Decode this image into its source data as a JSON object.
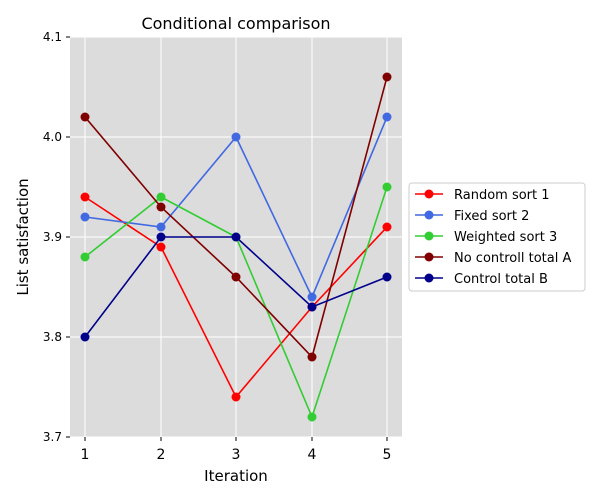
{
  "chart_data": {
    "type": "line",
    "title": "Conditional comparison",
    "xlabel": "Iteration",
    "ylabel": "List satisfaction",
    "x": [
      1,
      2,
      3,
      4,
      5
    ],
    "ylim": [
      3.7,
      4.1
    ],
    "yticks": [
      "3.7",
      "3.8",
      "3.9",
      "4.0",
      "4.1"
    ],
    "xticks": [
      "1",
      "2",
      "3",
      "4",
      "5"
    ],
    "grid": true,
    "legend_position": "right",
    "series": [
      {
        "name": "Random sort 1",
        "color": "#ff0000",
        "values": [
          3.94,
          3.89,
          3.74,
          3.83,
          3.91
        ]
      },
      {
        "name": "Fixed sort 2",
        "color": "#4169e1",
        "values": [
          3.92,
          3.91,
          4.0,
          3.84,
          4.02
        ]
      },
      {
        "name": "Weighted sort 3",
        "color": "#32cd32",
        "values": [
          3.88,
          3.94,
          3.9,
          3.72,
          3.95
        ]
      },
      {
        "name": "No controll total A",
        "color": "#800000",
        "values": [
          4.02,
          3.93,
          3.86,
          3.78,
          4.06
        ]
      },
      {
        "name": "Control total B",
        "color": "#00008b",
        "values": [
          3.8,
          3.9,
          3.9,
          3.83,
          3.86
        ]
      }
    ]
  }
}
